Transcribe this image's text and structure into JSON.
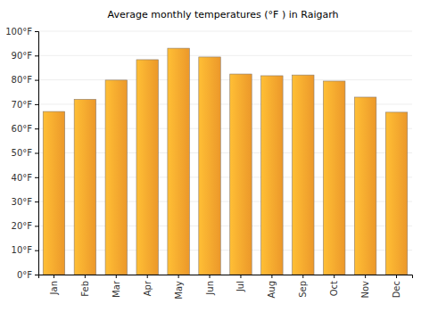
{
  "chart_data": {
    "type": "bar",
    "title": "Average monthly temperatures (°F ) in Raigarh",
    "categories": [
      "Jan",
      "Feb",
      "Mar",
      "Apr",
      "May",
      "Jun",
      "Jul",
      "Aug",
      "Sep",
      "Oct",
      "Nov",
      "Dec"
    ],
    "values": [
      67,
      72,
      79.9,
      88.3,
      93,
      89.4,
      82.4,
      81.7,
      82,
      79.5,
      72.9,
      66.7
    ],
    "color": "#f9a02c",
    "ylim": [
      0,
      100
    ],
    "yticks": [
      {
        "value": 0,
        "label": "0°F"
      },
      {
        "value": 10,
        "label": "10°F"
      },
      {
        "value": 20,
        "label": "20°F"
      },
      {
        "value": 30,
        "label": "30°F"
      },
      {
        "value": 40,
        "label": "40°F"
      },
      {
        "value": 50,
        "label": "50°F"
      },
      {
        "value": 60,
        "label": "60°F"
      },
      {
        "value": 70,
        "label": "70°F"
      },
      {
        "value": 80,
        "label": "80°F"
      },
      {
        "value": 90,
        "label": "90°F"
      },
      {
        "value": 100,
        "label": "100°F"
      }
    ],
    "grid": true
  }
}
